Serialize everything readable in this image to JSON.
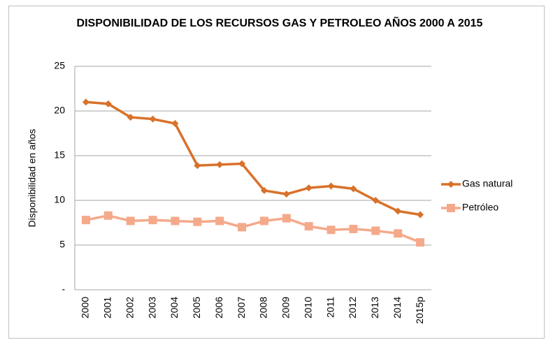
{
  "chart_data": {
    "type": "line",
    "title": "DISPONIBILIDAD DE LOS RECURSOS GAS Y PETROLEO AÑOS 2000 A 2015",
    "y_label": "Disponibilidad en años",
    "categories": [
      "2000",
      "2001",
      "2002",
      "2003",
      "2004",
      "2005",
      "2006",
      "2007",
      "2008",
      "2009",
      "2010",
      "2011",
      "2012",
      "2013",
      "2014",
      "2015p"
    ],
    "series": [
      {
        "name": "Gas natural",
        "color": "#d9712a",
        "marker": "diamond",
        "values": [
          21.0,
          20.8,
          19.3,
          19.1,
          18.6,
          13.9,
          14.0,
          14.1,
          11.1,
          10.7,
          11.4,
          11.6,
          11.3,
          10.0,
          8.8,
          8.4
        ]
      },
      {
        "name": "Petróleo",
        "color": "#f5a98b",
        "marker": "square",
        "values": [
          7.8,
          8.3,
          7.7,
          7.8,
          7.7,
          7.6,
          7.7,
          7.0,
          7.7,
          8.0,
          7.1,
          6.7,
          6.8,
          6.6,
          6.3,
          5.3
        ]
      }
    ],
    "ylim": [
      0,
      25
    ],
    "yticks": [
      {
        "value": 0,
        "label": "-"
      },
      5,
      10,
      15,
      20,
      25
    ],
    "grid": true,
    "legend": "right"
  }
}
